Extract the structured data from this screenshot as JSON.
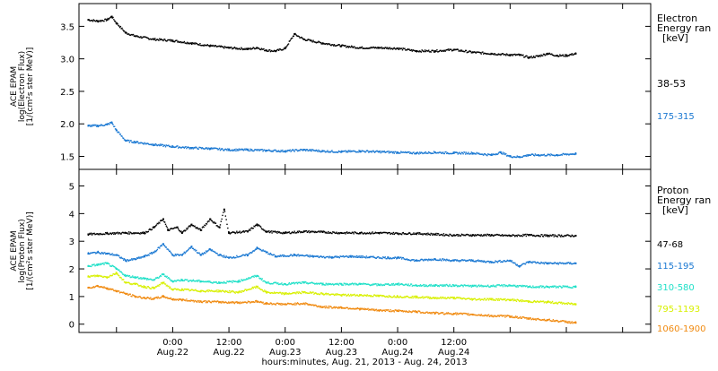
{
  "colors": {
    "frame": "#000000",
    "series_black": "#000000",
    "series_blue": "#1a78d2",
    "series_cyan": "#20e0c8",
    "series_yellow": "#d8f000",
    "series_orange": "#f08a10"
  },
  "chart_data": [
    {
      "type": "scatter",
      "panel": "electron",
      "ylabel_lines": [
        "ACE EPAM",
        "log(Electron Flux)",
        "[1/(cm²s ster MeV)]"
      ],
      "ylim": [
        1.3,
        3.85
      ],
      "yticks": [
        1.5,
        2.0,
        2.5,
        3.0,
        3.5
      ],
      "ytick_labels": [
        "1.5",
        "2.0",
        "2.5",
        "3.0",
        "3.5"
      ],
      "legend_title": [
        "Electron",
        "Energy ran",
        "[keV]"
      ],
      "grid": false,
      "series": [
        {
          "name": "38-53",
          "color": "series_black",
          "points": [
            [
              0,
              3.6
            ],
            [
              2,
              3.58
            ],
            [
              4,
              3.6
            ],
            [
              5,
              3.65
            ],
            [
              6,
              3.55
            ],
            [
              8,
              3.4
            ],
            [
              10,
              3.35
            ],
            [
              14,
              3.3
            ],
            [
              18,
              3.28
            ],
            [
              22,
              3.24
            ],
            [
              26,
              3.2
            ],
            [
              30,
              3.17
            ],
            [
              34,
              3.15
            ],
            [
              36,
              3.17
            ],
            [
              38,
              3.13
            ],
            [
              40,
              3.12
            ],
            [
              42,
              3.16
            ],
            [
              44,
              3.38
            ],
            [
              46,
              3.3
            ],
            [
              50,
              3.24
            ],
            [
              54,
              3.2
            ],
            [
              58,
              3.17
            ],
            [
              62,
              3.17
            ],
            [
              66,
              3.16
            ],
            [
              70,
              3.12
            ],
            [
              74,
              3.12
            ],
            [
              78,
              3.14
            ],
            [
              82,
              3.1
            ],
            [
              86,
              3.08
            ],
            [
              90,
              3.06
            ],
            [
              92,
              3.06
            ],
            [
              94,
              3.02
            ],
            [
              96,
              3.04
            ],
            [
              98,
              3.08
            ],
            [
              100,
              3.05
            ],
            [
              102,
              3.05
            ],
            [
              104,
              3.08
            ]
          ]
        },
        {
          "name": "175-315",
          "color": "series_blue",
          "points": [
            [
              0,
              1.97
            ],
            [
              2,
              1.97
            ],
            [
              4,
              1.99
            ],
            [
              5,
              2.02
            ],
            [
              6,
              1.9
            ],
            [
              8,
              1.74
            ],
            [
              10,
              1.72
            ],
            [
              14,
              1.68
            ],
            [
              18,
              1.65
            ],
            [
              22,
              1.63
            ],
            [
              26,
              1.62
            ],
            [
              30,
              1.6
            ],
            [
              34,
              1.6
            ],
            [
              38,
              1.59
            ],
            [
              42,
              1.58
            ],
            [
              46,
              1.6
            ],
            [
              50,
              1.58
            ],
            [
              54,
              1.57
            ],
            [
              58,
              1.58
            ],
            [
              62,
              1.57
            ],
            [
              66,
              1.56
            ],
            [
              70,
              1.55
            ],
            [
              74,
              1.56
            ],
            [
              78,
              1.55
            ],
            [
              82,
              1.55
            ],
            [
              86,
              1.52
            ],
            [
              88,
              1.56
            ],
            [
              90,
              1.5
            ],
            [
              92,
              1.49
            ],
            [
              94,
              1.52
            ],
            [
              96,
              1.52
            ],
            [
              100,
              1.52
            ],
            [
              104,
              1.54
            ]
          ]
        }
      ]
    },
    {
      "type": "scatter",
      "panel": "proton",
      "ylabel_lines": [
        "ACE EPAM",
        "log(Proton Flux)",
        "[1/(cm²s ster MeV)]"
      ],
      "ylim": [
        -0.3,
        5.6
      ],
      "yticks": [
        0,
        1,
        2,
        3,
        4,
        5
      ],
      "ytick_labels": [
        "0",
        "1",
        "2",
        "3",
        "4",
        "5"
      ],
      "legend_title": [
        "Proton",
        "Energy ran",
        "[keV]"
      ],
      "grid": false,
      "xlabel": "hours:minutes, Aug. 21, 2013 - Aug. 24, 2013",
      "xlim": [
        -2,
        120
      ],
      "xticks": [
        6,
        18,
        30,
        42,
        54,
        66,
        78,
        90,
        102,
        114
      ],
      "xtick_labels": [
        [
          "0:00",
          "Aug.22"
        ],
        [
          "12:00",
          "Aug.22"
        ],
        [
          "0:00",
          "Aug.23"
        ],
        [
          "12:00",
          "Aug.23"
        ],
        [
          "0:00",
          "Aug.24"
        ],
        [
          "12:00",
          "Aug.24"
        ]
      ],
      "xtick_label_positions": [
        18,
        30,
        42,
        54,
        66,
        78
      ],
      "series": [
        {
          "name": "47-68",
          "color": "series_black",
          "points": [
            [
              0,
              3.25
            ],
            [
              4,
              3.28
            ],
            [
              8,
              3.3
            ],
            [
              12,
              3.3
            ],
            [
              14,
              3.5
            ],
            [
              16,
              3.8
            ],
            [
              17,
              3.4
            ],
            [
              19,
              3.5
            ],
            [
              20,
              3.3
            ],
            [
              22,
              3.6
            ],
            [
              24,
              3.4
            ],
            [
              26,
              3.8
            ],
            [
              28,
              3.5
            ],
            [
              29,
              4.15
            ],
            [
              30,
              3.3
            ],
            [
              34,
              3.35
            ],
            [
              36,
              3.6
            ],
            [
              38,
              3.35
            ],
            [
              42,
              3.3
            ],
            [
              46,
              3.35
            ],
            [
              50,
              3.33
            ],
            [
              54,
              3.3
            ],
            [
              58,
              3.3
            ],
            [
              62,
              3.3
            ],
            [
              66,
              3.28
            ],
            [
              70,
              3.28
            ],
            [
              74,
              3.25
            ],
            [
              78,
              3.22
            ],
            [
              82,
              3.22
            ],
            [
              86,
              3.22
            ],
            [
              90,
              3.2
            ],
            [
              94,
              3.22
            ],
            [
              98,
              3.2
            ],
            [
              104,
              3.2
            ]
          ]
        },
        {
          "name": "115-195",
          "color": "series_blue",
          "points": [
            [
              0,
              2.55
            ],
            [
              2,
              2.6
            ],
            [
              4,
              2.55
            ],
            [
              6,
              2.5
            ],
            [
              8,
              2.3
            ],
            [
              10,
              2.35
            ],
            [
              12,
              2.45
            ],
            [
              14,
              2.6
            ],
            [
              16,
              2.9
            ],
            [
              18,
              2.5
            ],
            [
              20,
              2.5
            ],
            [
              22,
              2.8
            ],
            [
              24,
              2.5
            ],
            [
              26,
              2.7
            ],
            [
              28,
              2.5
            ],
            [
              30,
              2.4
            ],
            [
              34,
              2.5
            ],
            [
              36,
              2.75
            ],
            [
              38,
              2.6
            ],
            [
              40,
              2.45
            ],
            [
              44,
              2.5
            ],
            [
              48,
              2.45
            ],
            [
              52,
              2.42
            ],
            [
              56,
              2.45
            ],
            [
              60,
              2.42
            ],
            [
              64,
              2.4
            ],
            [
              66,
              2.4
            ],
            [
              70,
              2.3
            ],
            [
              74,
              2.35
            ],
            [
              78,
              2.3
            ],
            [
              82,
              2.3
            ],
            [
              86,
              2.25
            ],
            [
              90,
              2.3
            ],
            [
              92,
              2.1
            ],
            [
              94,
              2.25
            ],
            [
              98,
              2.2
            ],
            [
              104,
              2.2
            ]
          ]
        },
        {
          "name": "310-580",
          "color": "series_cyan",
          "points": [
            [
              0,
              2.1
            ],
            [
              2,
              2.15
            ],
            [
              4,
              2.2
            ],
            [
              6,
              2.0
            ],
            [
              8,
              1.75
            ],
            [
              10,
              1.7
            ],
            [
              12,
              1.65
            ],
            [
              14,
              1.6
            ],
            [
              16,
              1.8
            ],
            [
              18,
              1.55
            ],
            [
              20,
              1.6
            ],
            [
              24,
              1.55
            ],
            [
              28,
              1.5
            ],
            [
              32,
              1.55
            ],
            [
              36,
              1.75
            ],
            [
              38,
              1.5
            ],
            [
              42,
              1.45
            ],
            [
              46,
              1.5
            ],
            [
              50,
              1.45
            ],
            [
              54,
              1.45
            ],
            [
              58,
              1.45
            ],
            [
              62,
              1.42
            ],
            [
              66,
              1.45
            ],
            [
              70,
              1.4
            ],
            [
              74,
              1.4
            ],
            [
              78,
              1.4
            ],
            [
              82,
              1.38
            ],
            [
              86,
              1.38
            ],
            [
              90,
              1.4
            ],
            [
              94,
              1.35
            ],
            [
              98,
              1.35
            ],
            [
              104,
              1.35
            ]
          ]
        },
        {
          "name": "795-1193",
          "color": "series_yellow",
          "points": [
            [
              0,
              1.72
            ],
            [
              2,
              1.75
            ],
            [
              4,
              1.7
            ],
            [
              6,
              1.85
            ],
            [
              8,
              1.5
            ],
            [
              10,
              1.45
            ],
            [
              12,
              1.35
            ],
            [
              14,
              1.3
            ],
            [
              16,
              1.5
            ],
            [
              18,
              1.25
            ],
            [
              20,
              1.25
            ],
            [
              24,
              1.2
            ],
            [
              28,
              1.2
            ],
            [
              32,
              1.15
            ],
            [
              36,
              1.35
            ],
            [
              38,
              1.15
            ],
            [
              42,
              1.1
            ],
            [
              46,
              1.15
            ],
            [
              50,
              1.1
            ],
            [
              54,
              1.05
            ],
            [
              58,
              1.05
            ],
            [
              62,
              1.02
            ],
            [
              66,
              1.0
            ],
            [
              70,
              0.98
            ],
            [
              74,
              0.95
            ],
            [
              78,
              0.95
            ],
            [
              82,
              0.9
            ],
            [
              86,
              0.9
            ],
            [
              90,
              0.88
            ],
            [
              94,
              0.82
            ],
            [
              98,
              0.8
            ],
            [
              104,
              0.72
            ]
          ]
        },
        {
          "name": "1060-1900",
          "color": "series_orange",
          "points": [
            [
              0,
              1.32
            ],
            [
              2,
              1.38
            ],
            [
              4,
              1.3
            ],
            [
              6,
              1.2
            ],
            [
              8,
              1.1
            ],
            [
              10,
              1.0
            ],
            [
              12,
              0.95
            ],
            [
              14,
              0.92
            ],
            [
              16,
              1.0
            ],
            [
              18,
              0.9
            ],
            [
              20,
              0.88
            ],
            [
              24,
              0.82
            ],
            [
              28,
              0.8
            ],
            [
              32,
              0.78
            ],
            [
              36,
              0.82
            ],
            [
              38,
              0.75
            ],
            [
              42,
              0.72
            ],
            [
              46,
              0.75
            ],
            [
              50,
              0.62
            ],
            [
              54,
              0.6
            ],
            [
              58,
              0.55
            ],
            [
              62,
              0.5
            ],
            [
              66,
              0.48
            ],
            [
              70,
              0.45
            ],
            [
              74,
              0.4
            ],
            [
              78,
              0.38
            ],
            [
              82,
              0.35
            ],
            [
              86,
              0.3
            ],
            [
              90,
              0.28
            ],
            [
              94,
              0.2
            ],
            [
              98,
              0.15
            ],
            [
              104,
              0.05
            ]
          ]
        }
      ]
    }
  ]
}
